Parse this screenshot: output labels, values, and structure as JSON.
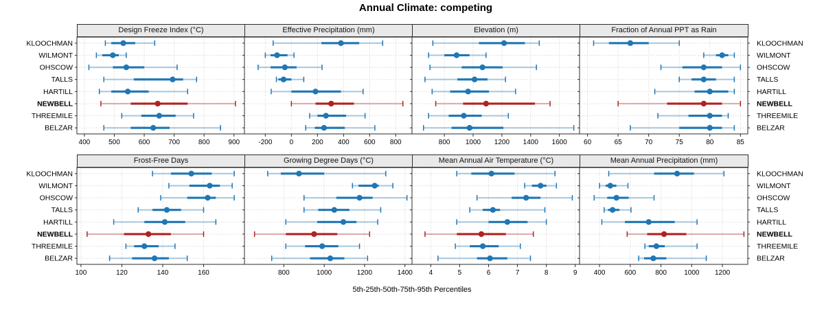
{
  "title": "Annual Climate: competing",
  "chart_data": {
    "type": "dot-interval-panel-plot",
    "title": "Annual Climate: competing",
    "caption": "5th-25th-50th-75th-95th Percentiles",
    "marker_encoding": "outer whisker caps = 5th/95th percentile, light line = 5th-25th and 75th-95th, thick line = 25th-75th, dot = 50th (median)",
    "legend_position": "none",
    "grid": "dotted",
    "sites": [
      "KLOOCHMAN",
      "WILMONT",
      "OHSCOW",
      "TALLS",
      "HARTILL",
      "NEWBELL",
      "THREEMILE",
      "BELZAR"
    ],
    "highlight_site": "NEWBELL",
    "colors": {
      "normal": "#1f77b4",
      "highlight": "#b22222",
      "grid": "#c9c9c9",
      "header_bg": "#e9e9e9",
      "border": "#2b2b2b",
      "text": "#000000"
    },
    "panels": [
      {
        "title": "Design Freeze Index (°C)",
        "row": 0,
        "col": 0,
        "domain": [
          375,
          935
        ],
        "ticks": [
          400,
          500,
          600,
          700,
          800,
          900
        ],
        "series": [
          [
            470,
            490,
            530,
            570,
            635
          ],
          [
            440,
            460,
            495,
            515,
            540
          ],
          [
            415,
            495,
            540,
            600,
            710
          ],
          [
            465,
            565,
            695,
            730,
            775
          ],
          [
            450,
            490,
            545,
            615,
            745
          ],
          [
            455,
            555,
            645,
            745,
            905
          ],
          [
            525,
            590,
            650,
            705,
            765
          ],
          [
            465,
            555,
            630,
            685,
            855
          ]
        ]
      },
      {
        "title": "Effective Precipitation (mm)",
        "row": 0,
        "col": 1,
        "domain": [
          -360,
          925
        ],
        "ticks": [
          -200,
          0,
          200,
          400,
          600,
          800
        ],
        "series": [
          [
            -140,
            230,
            380,
            520,
            700
          ],
          [
            -200,
            -160,
            -110,
            -30,
            20
          ],
          [
            -255,
            -160,
            -50,
            40,
            235
          ],
          [
            -115,
            -100,
            -60,
            0,
            95
          ],
          [
            -155,
            0,
            185,
            380,
            550
          ],
          [
            0,
            185,
            305,
            480,
            855
          ],
          [
            140,
            200,
            265,
            420,
            565
          ],
          [
            110,
            180,
            250,
            410,
            640
          ]
        ]
      },
      {
        "title": "Elevation (m)",
        "row": 0,
        "col": 2,
        "domain": [
          575,
          1740
        ],
        "ticks": [
          800,
          1000,
          1200,
          1400,
          1600
        ],
        "series": [
          [
            720,
            1040,
            1215,
            1360,
            1460
          ],
          [
            690,
            800,
            885,
            975,
            1090
          ],
          [
            700,
            920,
            1065,
            1205,
            1440
          ],
          [
            665,
            890,
            1010,
            1100,
            1225
          ],
          [
            715,
            840,
            965,
            1110,
            1295
          ],
          [
            740,
            930,
            1090,
            1430,
            1535
          ],
          [
            690,
            830,
            935,
            1060,
            1245
          ],
          [
            655,
            850,
            975,
            1210,
            1700
          ]
        ]
      },
      {
        "title": "Fraction of Annual PPT as Rain",
        "row": 0,
        "col": 3,
        "domain": [
          58.7,
          86.2
        ],
        "ticks": [
          60,
          65,
          70,
          75,
          80,
          85
        ],
        "series": [
          [
            61,
            63.5,
            67,
            70,
            75
          ],
          [
            79,
            81,
            82,
            83,
            84
          ],
          [
            72,
            75.5,
            79,
            82,
            85
          ],
          [
            75,
            77,
            79,
            81,
            84
          ],
          [
            71,
            77.5,
            80,
            83,
            84
          ],
          [
            65,
            73,
            79,
            82,
            85
          ],
          [
            71.5,
            76.5,
            80,
            82,
            83
          ],
          [
            67,
            75,
            80,
            82,
            84
          ]
        ]
      },
      {
        "title": "Frost-Free Days",
        "row": 1,
        "col": 0,
        "domain": [
          98,
          180
        ],
        "ticks": [
          100,
          120,
          140,
          160
        ],
        "series": [
          [
            135,
            144,
            154,
            164,
            175
          ],
          [
            143,
            153,
            163,
            168,
            174
          ],
          [
            139,
            152,
            162,
            166,
            175
          ],
          [
            128,
            135,
            142,
            149,
            160
          ],
          [
            116,
            131,
            141,
            151,
            166
          ],
          [
            103,
            121,
            133,
            144,
            160
          ],
          [
            122,
            126,
            131,
            138,
            146
          ],
          [
            114,
            125,
            136,
            143,
            152
          ]
        ]
      },
      {
        "title": "Growing Degree Days (°C)",
        "row": 1,
        "col": 1,
        "domain": [
          605,
          1435
        ],
        "ticks": [
          800,
          1000,
          1200,
          1400
        ],
        "series": [
          [
            720,
            785,
            875,
            1000,
            1305
          ],
          [
            1140,
            1170,
            1250,
            1270,
            1340
          ],
          [
            900,
            1060,
            1175,
            1240,
            1410
          ],
          [
            900,
            970,
            1050,
            1125,
            1280
          ],
          [
            810,
            965,
            1095,
            1160,
            1265
          ],
          [
            655,
            810,
            950,
            1065,
            1225
          ],
          [
            810,
            905,
            990,
            1070,
            1175
          ],
          [
            740,
            930,
            1030,
            1100,
            1215
          ]
        ]
      },
      {
        "title": "Mean Annual Air Temperature (°C)",
        "row": 1,
        "col": 2,
        "domain": [
          3.35,
          9.15
        ],
        "ticks": [
          4,
          5,
          6,
          7,
          8,
          9
        ],
        "series": [
          [
            4.9,
            5.4,
            6.1,
            6.9,
            8.3
          ],
          [
            7.25,
            7.5,
            7.8,
            8.0,
            8.35
          ],
          [
            5.6,
            6.8,
            7.3,
            7.8,
            8.9
          ],
          [
            5.35,
            5.8,
            6.15,
            6.4,
            7.95
          ],
          [
            4.9,
            6.0,
            6.65,
            7.35,
            8.0
          ],
          [
            3.8,
            4.9,
            5.75,
            6.6,
            7.55
          ],
          [
            4.85,
            5.35,
            5.8,
            6.35,
            7.1
          ],
          [
            4.25,
            5.6,
            6.05,
            6.65,
            7.45
          ]
        ]
      },
      {
        "title": "Mean Annual Precipitation (mm)",
        "row": 1,
        "col": 3,
        "domain": [
          270,
          1365
        ],
        "ticks": [
          400,
          600,
          800,
          1000,
          1200
        ],
        "series": [
          [
            460,
            755,
            905,
            1015,
            1210
          ],
          [
            400,
            440,
            470,
            510,
            585
          ],
          [
            365,
            450,
            510,
            590,
            755
          ],
          [
            430,
            455,
            485,
            530,
            605
          ],
          [
            415,
            565,
            720,
            890,
            1035
          ],
          [
            580,
            710,
            820,
            965,
            1340
          ],
          [
            695,
            720,
            770,
            825,
            1035
          ],
          [
            655,
            690,
            750,
            835,
            1095
          ]
        ]
      }
    ]
  }
}
